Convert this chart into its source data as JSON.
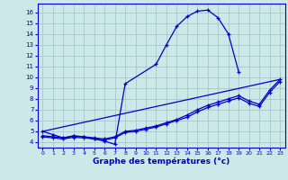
{
  "xlabel": "Graphe des températures (°c)",
  "bg_color": "#cce8e8",
  "grid_color": "#aacccc",
  "line_color": "#0000cc",
  "ylim": [
    3.5,
    16.8
  ],
  "xlim": [
    -0.5,
    23.5
  ],
  "yticks": [
    4,
    5,
    6,
    7,
    8,
    9,
    10,
    11,
    12,
    13,
    14,
    15,
    16
  ],
  "xticks": [
    0,
    1,
    2,
    3,
    4,
    5,
    6,
    7,
    8,
    9,
    10,
    11,
    12,
    13,
    14,
    15,
    16,
    17,
    18,
    19,
    20,
    21,
    22,
    23
  ],
  "main_x": [
    0,
    1,
    2,
    3,
    4,
    5,
    6,
    7,
    8,
    11,
    12,
    13,
    14,
    15,
    16,
    17,
    18,
    19
  ],
  "main_y": [
    5.0,
    4.7,
    4.4,
    4.6,
    4.5,
    4.3,
    4.1,
    3.8,
    9.4,
    11.2,
    13.0,
    14.7,
    15.6,
    16.1,
    16.2,
    15.5,
    14.0,
    10.5
  ],
  "line1_x": [
    0,
    23
  ],
  "line1_y": [
    5.0,
    9.8
  ],
  "line2_x": [
    0,
    1,
    2,
    3,
    4,
    5,
    6,
    7,
    8,
    9,
    10,
    11,
    12,
    13,
    14,
    15,
    16,
    17,
    18,
    19,
    20,
    21,
    22,
    23
  ],
  "line2_y": [
    4.6,
    4.5,
    4.4,
    4.55,
    4.5,
    4.4,
    4.3,
    4.5,
    5.0,
    5.1,
    5.3,
    5.5,
    5.8,
    6.1,
    6.5,
    7.0,
    7.4,
    7.7,
    8.0,
    8.3,
    7.8,
    7.5,
    8.8,
    9.8
  ],
  "line3_x": [
    0,
    1,
    2,
    3,
    4,
    5,
    6,
    7,
    8,
    9,
    10,
    11,
    12,
    13,
    14,
    15,
    16,
    17,
    18,
    19,
    20,
    21,
    22,
    23
  ],
  "line3_y": [
    4.5,
    4.4,
    4.3,
    4.45,
    4.4,
    4.3,
    4.2,
    4.4,
    4.9,
    5.0,
    5.2,
    5.4,
    5.7,
    6.0,
    6.3,
    6.8,
    7.2,
    7.5,
    7.8,
    8.1,
    7.6,
    7.3,
    8.6,
    9.6
  ]
}
